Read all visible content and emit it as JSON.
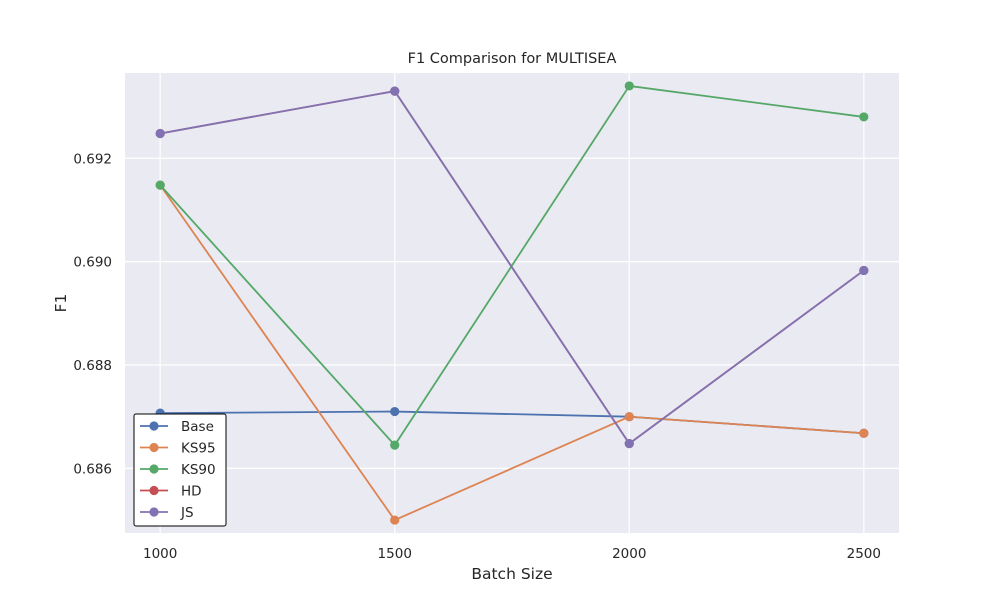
{
  "chart_data": {
    "type": "line",
    "title": "F1 Comparison for MULTISEA",
    "xlabel": "Batch Size",
    "ylabel": "F1",
    "x": [
      1000,
      1500,
      2000,
      2500
    ],
    "xticks": [
      "1000",
      "1500",
      "2000",
      "2500"
    ],
    "yticks": [
      "0.686",
      "0.688",
      "0.690",
      "0.692"
    ],
    "ytick_values": [
      0.686,
      0.688,
      0.69,
      0.692
    ],
    "xlim": [
      925,
      2575
    ],
    "ylim": [
      0.68475,
      0.69365
    ],
    "grid": true,
    "legend_position": "lower-left",
    "series": [
      {
        "name": "Base",
        "color": "#4c72b0",
        "values": [
          0.68707,
          0.6871,
          0.687,
          0.68668
        ]
      },
      {
        "name": "KS95",
        "color": "#dd8452",
        "values": [
          0.69148,
          0.685,
          0.687,
          0.68668
        ]
      },
      {
        "name": "KS90",
        "color": "#55a868",
        "values": [
          0.69148,
          0.68645,
          0.6934,
          0.6928
        ]
      },
      {
        "name": "HD",
        "color": "#c44e52",
        "values": [
          0.69248,
          0.6933,
          0.68648,
          0.68983
        ]
      },
      {
        "name": "JS",
        "color": "#8172b3",
        "values": [
          0.69248,
          0.6933,
          0.68648,
          0.68983
        ]
      }
    ]
  }
}
